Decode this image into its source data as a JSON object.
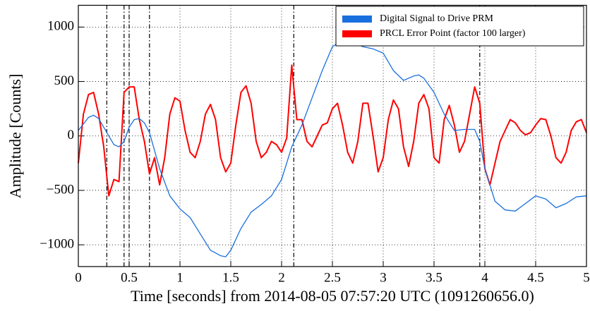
{
  "chart_data": {
    "type": "line",
    "xlabel": "Time [seconds] from 2014-08-05 07:57:20 UTC (1091260656.0)",
    "ylabel": "Amplitude [Counts]",
    "xlim": [
      0,
      5
    ],
    "ylim": [
      -1200,
      1200
    ],
    "xticks": [
      0,
      0.5,
      1,
      1.5,
      2,
      2.5,
      3,
      3.5,
      4,
      4.5,
      5
    ],
    "yticks": [
      {
        "value": -1000,
        "label": "−1000"
      },
      {
        "value": -500,
        "label": "−500"
      },
      0,
      500,
      1000
    ],
    "grid": true,
    "legend": "upper right",
    "vlines": [
      0.28,
      0.45,
      0.5,
      0.7,
      2.12,
      3.95
    ],
    "series": [
      {
        "name": "Digital Signal to Drive PRM",
        "color": "#1a6fdf",
        "x": [
          0,
          0.1,
          0.15,
          0.2,
          0.3,
          0.35,
          0.4,
          0.45,
          0.5,
          0.55,
          0.6,
          0.65,
          0.7,
          0.8,
          0.9,
          1.0,
          1.1,
          1.2,
          1.3,
          1.4,
          1.45,
          1.5,
          1.6,
          1.7,
          1.8,
          1.9,
          2.0,
          2.1,
          2.2,
          2.3,
          2.4,
          2.5,
          2.6,
          2.7,
          2.8,
          2.9,
          3.0,
          3.1,
          3.2,
          3.3,
          3.35,
          3.4,
          3.5,
          3.6,
          3.7,
          3.8,
          3.9,
          3.95,
          4.0,
          4.1,
          4.2,
          4.3,
          4.4,
          4.5,
          4.6,
          4.7,
          4.8,
          4.9,
          5.0
        ],
        "values": [
          50,
          170,
          190,
          160,
          0,
          -80,
          -100,
          -50,
          80,
          150,
          160,
          120,
          30,
          -300,
          -550,
          -670,
          -750,
          -900,
          -1050,
          -1100,
          -1110,
          -1050,
          -850,
          -700,
          -630,
          -550,
          -400,
          -100,
          100,
          350,
          600,
          820,
          880,
          860,
          820,
          800,
          760,
          600,
          510,
          550,
          560,
          530,
          400,
          200,
          50,
          60,
          60,
          -50,
          -300,
          -600,
          -680,
          -690,
          -620,
          -550,
          -580,
          -660,
          -620,
          -560,
          -550
        ]
      },
      {
        "name": "PRCL Error Point (factor 100 larger)",
        "color": "#ff0000",
        "x": [
          0,
          0.05,
          0.1,
          0.15,
          0.2,
          0.25,
          0.3,
          0.35,
          0.4,
          0.45,
          0.5,
          0.55,
          0.6,
          0.65,
          0.7,
          0.75,
          0.8,
          0.85,
          0.9,
          0.95,
          1.0,
          1.05,
          1.1,
          1.15,
          1.2,
          1.25,
          1.3,
          1.35,
          1.4,
          1.45,
          1.5,
          1.55,
          1.6,
          1.65,
          1.7,
          1.75,
          1.8,
          1.85,
          1.9,
          1.95,
          2.0,
          2.05,
          2.1,
          2.15,
          2.2,
          2.25,
          2.3,
          2.35,
          2.4,
          2.45,
          2.5,
          2.55,
          2.6,
          2.65,
          2.7,
          2.75,
          2.8,
          2.85,
          2.9,
          2.95,
          3.0,
          3.05,
          3.1,
          3.15,
          3.2,
          3.25,
          3.3,
          3.35,
          3.4,
          3.45,
          3.5,
          3.55,
          3.6,
          3.65,
          3.7,
          3.75,
          3.8,
          3.85,
          3.9,
          3.95,
          4.0,
          4.05,
          4.1,
          4.15,
          4.2,
          4.25,
          4.3,
          4.35,
          4.4,
          4.45,
          4.5,
          4.55,
          4.6,
          4.65,
          4.7,
          4.75,
          4.8,
          4.85,
          4.9,
          4.95,
          5.0
        ],
        "values": [
          -250,
          200,
          380,
          400,
          200,
          -100,
          -550,
          -400,
          -420,
          400,
          450,
          450,
          150,
          -50,
          -350,
          -200,
          -450,
          -200,
          200,
          350,
          320,
          50,
          -150,
          -200,
          -50,
          200,
          290,
          150,
          -200,
          -330,
          -250,
          100,
          400,
          460,
          300,
          -50,
          -200,
          -150,
          -50,
          -80,
          -150,
          -20,
          650,
          150,
          150,
          -50,
          -100,
          0,
          100,
          120,
          250,
          300,
          100,
          -150,
          -250,
          -50,
          300,
          300,
          0,
          -330,
          -200,
          150,
          330,
          250,
          -100,
          -280,
          -50,
          300,
          380,
          250,
          -200,
          -250,
          150,
          280,
          100,
          -150,
          -50,
          200,
          450,
          300,
          -300,
          -450,
          -250,
          -50,
          50,
          150,
          120,
          50,
          10,
          30,
          100,
          160,
          150,
          0,
          -200,
          -250,
          -150,
          50,
          130,
          150,
          30
        ]
      }
    ]
  }
}
